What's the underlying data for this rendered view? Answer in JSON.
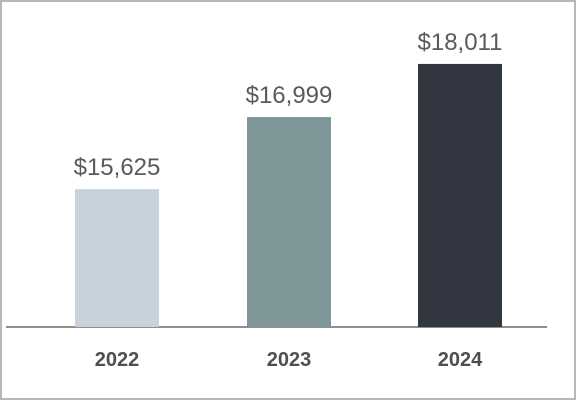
{
  "chart_data": {
    "type": "bar",
    "categories": [
      "2022",
      "2023",
      "2024"
    ],
    "values": [
      15625,
      16999,
      18011
    ],
    "data_labels": [
      "$15,625",
      "$16,999",
      "$18,011"
    ],
    "colors": [
      "#c7d2dc",
      "#7f9699",
      "#333741"
    ],
    "axis_color": "#8f8f8f",
    "ylim": [
      13000,
      19000
    ],
    "grid": false,
    "legend": "none"
  }
}
